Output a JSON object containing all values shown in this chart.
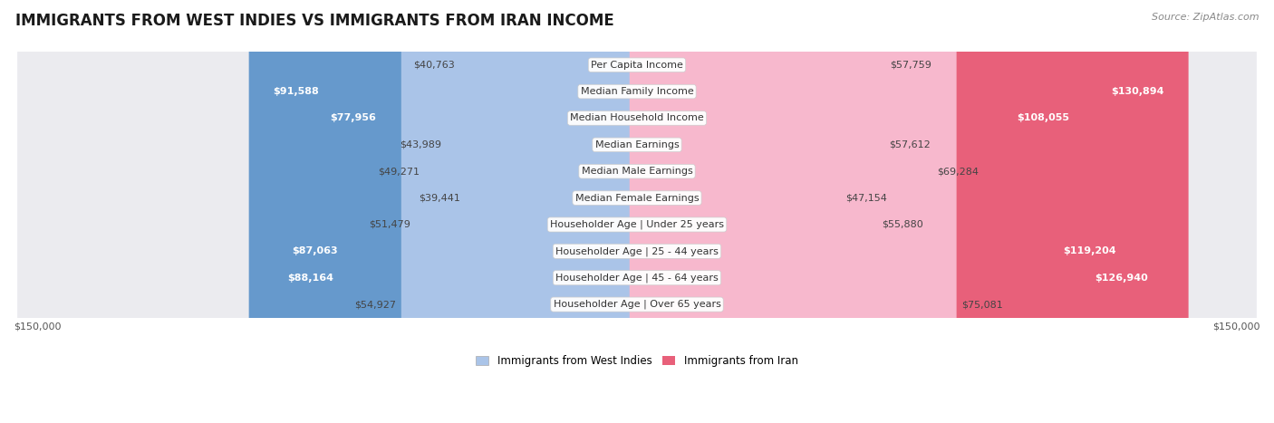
{
  "title": "IMMIGRANTS FROM WEST INDIES VS IMMIGRANTS FROM IRAN INCOME",
  "source": "Source: ZipAtlas.com",
  "categories": [
    "Per Capita Income",
    "Median Family Income",
    "Median Household Income",
    "Median Earnings",
    "Median Male Earnings",
    "Median Female Earnings",
    "Householder Age | Under 25 years",
    "Householder Age | 25 - 44 years",
    "Householder Age | 45 - 64 years",
    "Householder Age | Over 65 years"
  ],
  "west_indies_values": [
    40763,
    91588,
    77956,
    43989,
    49271,
    39441,
    51479,
    87063,
    88164,
    54927
  ],
  "iran_values": [
    57759,
    130894,
    108055,
    57612,
    69284,
    47154,
    55880,
    119204,
    126940,
    75081
  ],
  "west_indies_labels": [
    "$40,763",
    "$91,588",
    "$77,956",
    "$43,989",
    "$49,271",
    "$39,441",
    "$51,479",
    "$87,063",
    "$88,164",
    "$54,927"
  ],
  "iran_labels": [
    "$57,759",
    "$130,894",
    "$108,055",
    "$57,612",
    "$69,284",
    "$47,154",
    "$55,880",
    "$119,204",
    "$126,940",
    "$75,081"
  ],
  "west_indies_color_light": "#aac4e8",
  "west_indies_color_dark": "#6699cc",
  "iran_color_light": "#f7b8cd",
  "iran_color_dark": "#e8607a",
  "max_value": 150000,
  "background_color": "#ffffff",
  "row_bg_even": "#f5f5f7",
  "row_bg_odd": "#ebebef",
  "xlabel_left": "$150,000",
  "xlabel_right": "$150,000",
  "legend_label_1": "Immigrants from West Indies",
  "legend_label_2": "Immigrants from Iran",
  "title_fontsize": 12,
  "source_fontsize": 8,
  "label_fontsize": 8,
  "category_fontsize": 8,
  "wi_dark_threshold": 60000,
  "ir_dark_threshold": 90000
}
